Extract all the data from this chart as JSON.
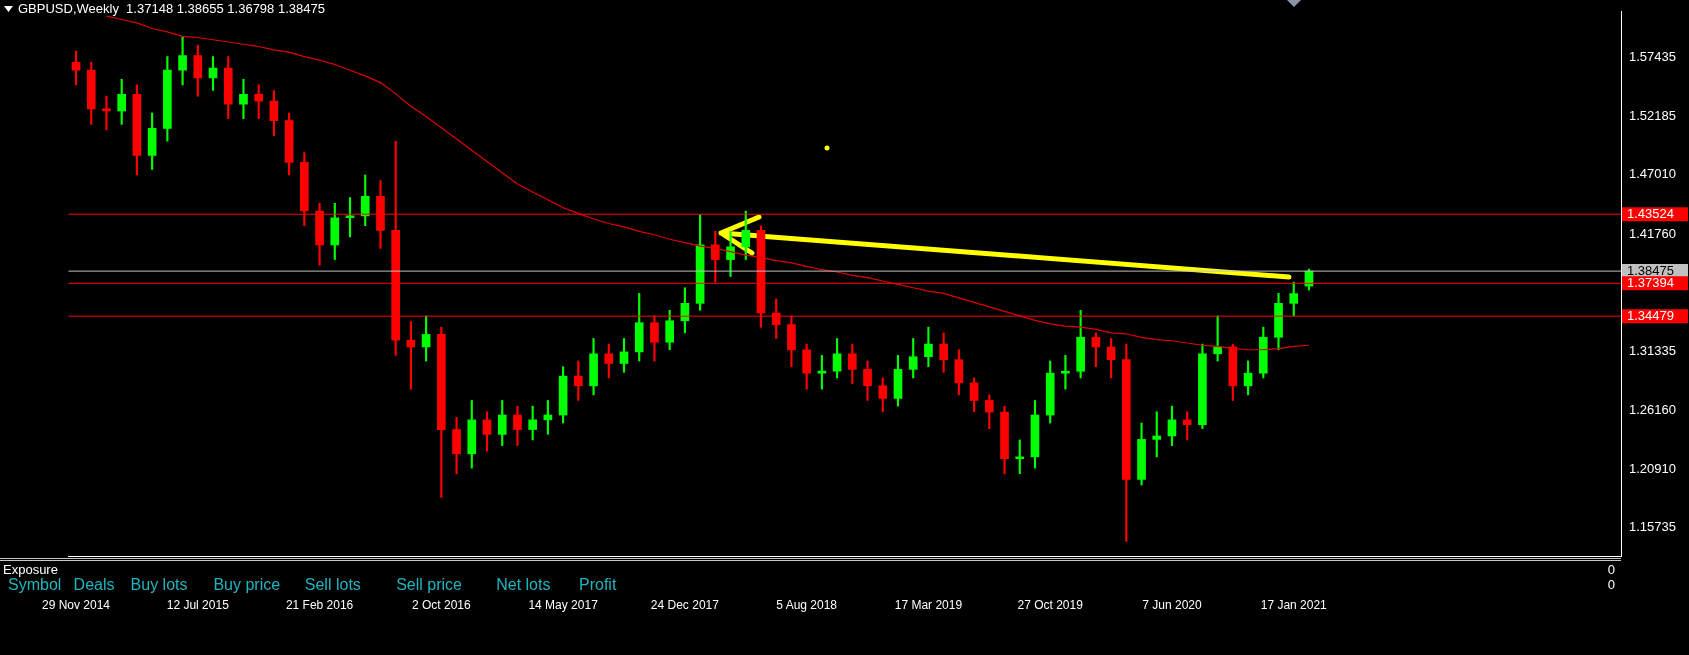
{
  "chart_data": {
    "type": "candlestick",
    "title": "GBPUSD,Weekly  1.37148 1.38655 1.36798 1.38475",
    "categories": [
      "29 Nov 2014",
      null,
      null,
      null,
      null,
      null,
      null,
      null,
      "12 Jul 2015",
      null,
      null,
      null,
      null,
      null,
      null,
      null,
      "21 Feb 2016",
      null,
      null,
      null,
      null,
      null,
      null,
      null,
      "2 Oct 2016",
      null,
      null,
      null,
      null,
      null,
      null,
      null,
      "14 May 2017",
      null,
      null,
      null,
      null,
      null,
      null,
      null,
      "24 Dec 2017",
      null,
      null,
      null,
      null,
      null,
      null,
      null,
      "5 Aug 2018",
      null,
      null,
      null,
      null,
      null,
      null,
      null,
      "17 Mar 2019",
      null,
      null,
      null,
      null,
      null,
      null,
      null,
      "27 Oct 2019",
      null,
      null,
      null,
      null,
      null,
      null,
      null,
      "7 Jun 2020",
      null,
      null,
      null,
      null,
      null,
      null,
      null,
      "17 Jan 2021",
      null,
      null,
      null,
      null,
      null,
      null,
      null,
      null,
      null,
      null,
      null,
      null,
      null,
      null,
      null,
      null,
      null,
      null,
      null,
      null,
      null
    ],
    "series": [
      {
        "ohlc": [
          [
            1.57,
            1.58,
            1.55,
            1.5631
          ],
          [
            1.5631,
            1.57,
            1.515,
            1.5287
          ],
          [
            1.5287,
            1.54,
            1.51,
            1.5269
          ],
          [
            1.5269,
            1.555,
            1.515,
            1.5416
          ],
          [
            1.5416,
            1.55,
            1.47,
            1.4873
          ],
          [
            1.4873,
            1.525,
            1.475,
            1.5114
          ],
          [
            1.5114,
            1.575,
            1.5,
            1.5631
          ],
          [
            1.5631,
            1.593,
            1.55,
            1.576
          ],
          [
            1.576,
            1.585,
            1.54,
            1.5562
          ],
          [
            1.5562,
            1.575,
            1.545,
            1.5648
          ],
          [
            1.5648,
            1.575,
            1.52,
            1.5329
          ],
          [
            1.5329,
            1.555,
            1.52,
            1.5416
          ],
          [
            1.5416,
            1.55,
            1.52,
            1.5355
          ],
          [
            1.5355,
            1.545,
            1.505,
            1.5183
          ],
          [
            1.5183,
            1.525,
            1.47,
            1.4812
          ],
          [
            1.4812,
            1.49,
            1.425,
            1.4381
          ],
          [
            1.4381,
            1.445,
            1.39,
            1.408
          ],
          [
            1.408,
            1.445,
            1.395,
            1.4321
          ],
          [
            1.4321,
            1.45,
            1.415,
            1.4338
          ],
          [
            1.4338,
            1.47,
            1.425,
            1.451
          ],
          [
            1.451,
            1.465,
            1.405,
            1.4209
          ],
          [
            1.4209,
            1.5,
            1.31,
            1.3235
          ],
          [
            1.3235,
            1.34,
            1.28,
            1.3175
          ],
          [
            1.3175,
            1.345,
            1.305,
            1.3286
          ],
          [
            1.3286,
            1.335,
            1.184,
            1.2442
          ],
          [
            1.2442,
            1.255,
            1.205,
            1.2227
          ],
          [
            1.2227,
            1.27,
            1.21,
            1.2528
          ],
          [
            1.2528,
            1.26,
            1.225,
            1.2399
          ],
          [
            1.2399,
            1.27,
            1.23,
            1.2571
          ],
          [
            1.2571,
            1.265,
            1.23,
            1.2442
          ],
          [
            1.2442,
            1.265,
            1.235,
            1.2528
          ],
          [
            1.2528,
            1.27,
            1.24,
            1.2571
          ],
          [
            1.2571,
            1.3,
            1.25,
            1.2916
          ],
          [
            1.2916,
            1.305,
            1.27,
            1.283
          ],
          [
            1.283,
            1.325,
            1.275,
            1.3114
          ],
          [
            1.3114,
            1.32,
            1.29,
            1.3028
          ],
          [
            1.3028,
            1.325,
            1.295,
            1.3131
          ],
          [
            1.3131,
            1.365,
            1.305,
            1.339
          ],
          [
            1.339,
            1.345,
            1.305,
            1.3217
          ],
          [
            1.3217,
            1.35,
            1.315,
            1.3407
          ],
          [
            1.3407,
            1.37,
            1.33,
            1.3562
          ],
          [
            1.3562,
            1.435,
            1.35,
            1.408
          ],
          [
            1.408,
            1.42,
            1.375,
            1.395
          ],
          [
            1.395,
            1.42,
            1.38,
            1.4062
          ],
          [
            1.4062,
            1.438,
            1.395,
            1.4209
          ],
          [
            1.4209,
            1.425,
            1.335,
            1.3476
          ],
          [
            1.3476,
            1.36,
            1.325,
            1.3373
          ],
          [
            1.3373,
            1.345,
            1.3,
            1.3149
          ],
          [
            1.3149,
            1.32,
            1.28,
            1.2942
          ],
          [
            1.2942,
            1.31,
            1.28,
            1.296
          ],
          [
            1.296,
            1.325,
            1.29,
            1.3114
          ],
          [
            1.3114,
            1.32,
            1.285,
            1.2976
          ],
          [
            1.2976,
            1.305,
            1.27,
            1.283
          ],
          [
            1.283,
            1.29,
            1.26,
            1.2718
          ],
          [
            1.2718,
            1.31,
            1.265,
            1.2976
          ],
          [
            1.2976,
            1.325,
            1.29,
            1.3088
          ],
          [
            1.3088,
            1.335,
            1.3,
            1.32
          ],
          [
            1.32,
            1.33,
            1.295,
            1.3062
          ],
          [
            1.3062,
            1.315,
            1.275,
            1.2856
          ],
          [
            1.2856,
            1.29,
            1.26,
            1.27
          ],
          [
            1.27,
            1.275,
            1.245,
            1.2597
          ],
          [
            1.2597,
            1.265,
            1.205,
            1.2183
          ],
          [
            1.2183,
            1.235,
            1.205,
            1.22
          ],
          [
            1.22,
            1.27,
            1.21,
            1.2571
          ],
          [
            1.2571,
            1.305,
            1.25,
            1.2942
          ],
          [
            1.2942,
            1.31,
            1.28,
            1.2959
          ],
          [
            1.2959,
            1.35,
            1.29,
            1.3261
          ],
          [
            1.3261,
            1.33,
            1.3,
            1.3175
          ],
          [
            1.3175,
            1.325,
            1.29,
            1.3062
          ],
          [
            1.3062,
            1.32,
            1.145,
            1.2
          ],
          [
            1.2,
            1.25,
            1.195,
            1.2355
          ],
          [
            1.2355,
            1.26,
            1.22,
            1.2385
          ],
          [
            1.2385,
            1.265,
            1.23,
            1.2528
          ],
          [
            1.2528,
            1.26,
            1.235,
            1.2485
          ],
          [
            1.2485,
            1.32,
            1.245,
            1.3114
          ],
          [
            1.3114,
            1.345,
            1.305,
            1.3175
          ],
          [
            1.3175,
            1.32,
            1.27,
            1.283
          ],
          [
            1.283,
            1.305,
            1.275,
            1.2942
          ],
          [
            1.2942,
            1.335,
            1.29,
            1.3261
          ],
          [
            1.3261,
            1.365,
            1.315,
            1.3562
          ],
          [
            1.3562,
            1.375,
            1.345,
            1.3648
          ],
          [
            1.37148,
            1.38655,
            1.36798,
            1.38475
          ],
          null,
          null,
          null,
          null,
          null,
          null,
          null,
          null,
          null,
          null,
          null,
          null,
          null,
          null,
          null,
          null,
          null,
          null,
          null,
          null
        ],
        "colors": [
          "#ff0000",
          "#ff0000",
          "#ff0000",
          "#00ff00",
          "#ff0000",
          "#00ff00",
          "#00ff00",
          "#00ff00",
          "#ff0000",
          "#00ff00",
          "#ff0000",
          "#00ff00",
          "#ff0000",
          "#ff0000",
          "#ff0000",
          "#ff0000",
          "#ff0000",
          "#00ff00",
          "#00ff00",
          "#00ff00",
          "#ff0000",
          "#ff0000",
          "#ff0000",
          "#00ff00",
          "#ff0000",
          "#ff0000",
          "#00ff00",
          "#ff0000",
          "#00ff00",
          "#ff0000",
          "#00ff00",
          "#00ff00",
          "#00ff00",
          "#ff0000",
          "#00ff00",
          "#ff0000",
          "#00ff00",
          "#00ff00",
          "#ff0000",
          "#00ff00",
          "#00ff00",
          "#00ff00",
          "#ff0000",
          "#00ff00",
          "#00ff00",
          "#ff0000",
          "#ff0000",
          "#ff0000",
          "#ff0000",
          "#00ff00",
          "#00ff00",
          "#ff0000",
          "#ff0000",
          "#ff0000",
          "#00ff00",
          "#00ff00",
          "#00ff00",
          "#ff0000",
          "#ff0000",
          "#ff0000",
          "#ff0000",
          "#ff0000",
          "#00ff00",
          "#00ff00",
          "#00ff00",
          "#00ff00",
          "#00ff00",
          "#ff0000",
          "#ff0000",
          "#ff0000",
          "#00ff00",
          "#00ff00",
          "#00ff00",
          "#ff0000",
          "#00ff00",
          "#00ff00",
          "#ff0000",
          "#00ff00",
          "#00ff00",
          "#00ff00",
          "#00ff00",
          "#00ff00",
          null,
          null,
          null,
          null,
          null,
          null,
          null,
          null,
          null,
          null,
          null,
          null,
          null,
          null,
          null,
          null,
          null,
          null,
          null,
          null
        ]
      },
      {
        "type": "line",
        "color": "#e00000",
        "values": [
          null,
          null,
          1.611,
          1.608,
          1.605,
          1.6,
          1.597,
          1.593,
          1.592,
          1.59,
          1.588,
          1.586,
          1.584,
          1.581,
          1.579,
          1.575,
          1.572,
          1.568,
          1.563,
          1.558,
          1.552,
          1.542,
          1.531,
          1.522,
          1.512,
          1.502,
          1.492,
          1.482,
          1.472,
          1.462,
          1.455,
          1.448,
          1.441,
          1.436,
          1.431,
          1.427,
          1.424,
          1.42,
          1.417,
          1.413,
          1.41,
          1.407,
          1.405,
          1.402,
          1.399,
          1.397,
          1.394,
          1.392,
          1.389,
          1.386,
          1.384,
          1.381,
          1.379,
          1.376,
          1.373,
          1.37,
          1.367,
          1.365,
          1.361,
          1.357,
          1.353,
          1.349,
          1.345,
          1.341,
          1.338,
          1.336,
          1.335,
          1.333,
          1.33,
          1.329,
          1.326,
          1.324,
          1.323,
          1.321,
          1.319,
          1.318,
          1.316,
          1.315,
          1.315,
          1.316,
          1.318,
          1.319,
          null,
          null,
          null,
          null,
          null,
          null,
          null,
          null,
          null,
          null,
          null,
          null,
          null,
          null,
          null,
          null,
          null,
          null,
          null,
          null
        ]
      }
    ],
    "ylim": [
      1.1315,
      1.6148
    ],
    "yticks": [
      {
        "value": 1.15735,
        "label": "1.15735"
      },
      {
        "value": 1.2091,
        "label": "1.20910"
      },
      {
        "value": 1.2616,
        "label": "1.26160"
      },
      {
        "value": 1.31335,
        "label": "1.31335"
      },
      {
        "value": 1.4176,
        "label": "1.41760"
      },
      {
        "value": 1.4701,
        "label": "1.47010"
      },
      {
        "value": 1.52185,
        "label": "1.52185"
      },
      {
        "value": 1.57435,
        "label": "1.57435"
      }
    ],
    "ref_lines": [
      {
        "axis": "y",
        "value": 1.43524,
        "label": "1.43524",
        "color": "#ff0000"
      },
      {
        "axis": "y",
        "value": 1.38475,
        "label": "1.38475",
        "color": "#c0c0c0"
      },
      {
        "axis": "y",
        "value": 1.37394,
        "label": "1.37394",
        "color": "#ff0000"
      },
      {
        "axis": "y",
        "value": 1.34479,
        "label": "1.34479",
        "color": "#ff0000"
      }
    ],
    "annotations": [
      "Exposure",
      "Symbol",
      "Deals",
      "Buy lots",
      "Buy price",
      "Sell lots",
      "Sell price",
      "Net lots",
      "Profit",
      "0",
      "0"
    ],
    "grid": false,
    "legend": false
  }
}
